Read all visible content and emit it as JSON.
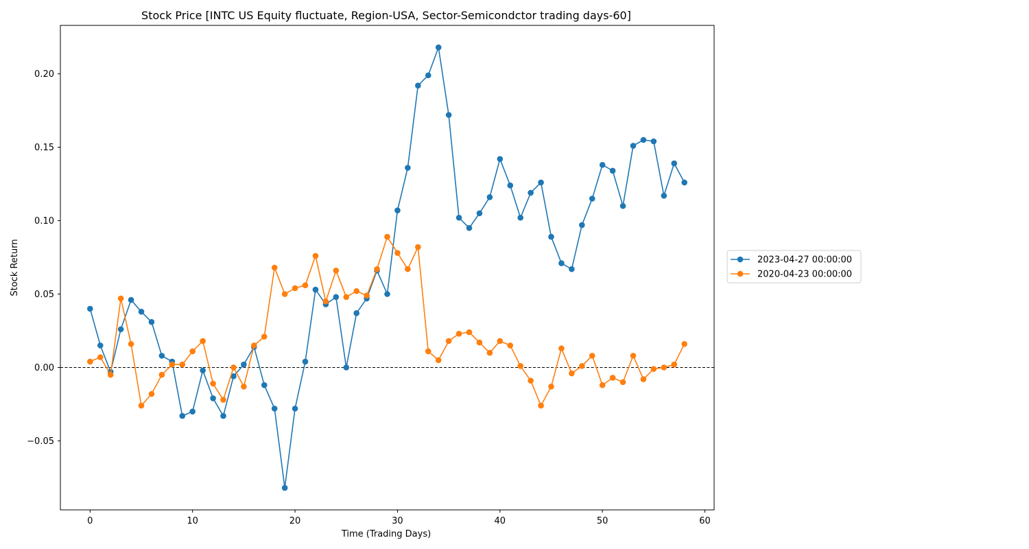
{
  "chart_data": {
    "type": "line",
    "title": "Stock Price [INTC US Equity fluctuate, Region-USA, Sector-Semicondctor trading days-60]",
    "xlabel": "Time (Trading Days)",
    "ylabel": "Stock Return",
    "xlim": [
      -2.9,
      60.9
    ],
    "ylim": [
      -0.097,
      0.233
    ],
    "xticks": [
      0,
      10,
      20,
      30,
      40,
      50,
      60
    ],
    "xtick_labels": [
      "0",
      "10",
      "20",
      "30",
      "40",
      "50",
      "60"
    ],
    "yticks": [
      -0.05,
      0.0,
      0.05,
      0.1,
      0.15,
      0.2
    ],
    "ytick_labels": [
      "−0.05",
      "0.00",
      "0.05",
      "0.10",
      "0.15",
      "0.20"
    ],
    "hline": {
      "y": 0,
      "style": "dashed",
      "color": "#000000"
    },
    "grid": false,
    "legend_position": "outside-right",
    "series": [
      {
        "name": "2023-04-27 00:00:00",
        "color": "#1f77b4",
        "marker": "circle",
        "x": [
          0,
          1,
          2,
          3,
          4,
          5,
          6,
          7,
          8,
          9,
          10,
          11,
          12,
          13,
          14,
          15,
          16,
          17,
          18,
          19,
          20,
          21,
          22,
          23,
          24,
          25,
          26,
          27,
          28,
          29,
          30,
          31,
          32,
          33,
          34,
          35,
          36,
          37,
          38,
          39,
          40,
          41,
          42,
          43,
          44,
          45,
          46,
          47,
          48,
          49,
          50,
          51,
          52,
          53,
          54,
          55,
          56,
          57,
          58
        ],
        "values": [
          0.04,
          0.015,
          -0.003,
          0.026,
          0.046,
          0.038,
          0.031,
          0.008,
          0.004,
          -0.033,
          -0.03,
          -0.002,
          -0.021,
          -0.033,
          -0.006,
          0.002,
          0.014,
          -0.012,
          -0.028,
          -0.082,
          -0.028,
          0.004,
          0.053,
          0.043,
          0.048,
          0.0,
          0.037,
          0.047,
          0.066,
          0.05,
          0.107,
          0.136,
          0.192,
          0.199,
          0.218,
          0.172,
          0.102,
          0.095,
          0.105,
          0.116,
          0.142,
          0.124,
          0.102,
          0.119,
          0.126,
          0.089,
          0.071,
          0.067,
          0.097,
          0.115,
          0.138,
          0.134,
          0.11,
          0.151,
          0.155,
          0.154,
          0.117,
          0.139,
          0.126
        ]
      },
      {
        "name": "2020-04-23 00:00:00",
        "color": "#ff7f0e",
        "marker": "circle",
        "x": [
          0,
          1,
          2,
          3,
          4,
          5,
          6,
          7,
          8,
          9,
          10,
          11,
          12,
          13,
          14,
          15,
          16,
          17,
          18,
          19,
          20,
          21,
          22,
          23,
          24,
          25,
          26,
          27,
          28,
          29,
          30,
          31,
          32,
          33,
          34,
          35,
          36,
          37,
          38,
          39,
          40,
          41,
          42,
          43,
          44,
          45,
          46,
          47,
          48,
          49,
          50,
          51,
          52,
          53,
          54,
          55,
          56,
          57,
          58
        ],
        "values": [
          0.004,
          0.007,
          -0.005,
          0.047,
          0.016,
          -0.026,
          -0.018,
          -0.005,
          0.002,
          0.002,
          0.011,
          0.018,
          -0.011,
          -0.022,
          0.0,
          -0.013,
          0.015,
          0.021,
          0.068,
          0.05,
          0.054,
          0.056,
          0.076,
          0.045,
          0.066,
          0.048,
          0.052,
          0.049,
          0.067,
          0.089,
          0.078,
          0.067,
          0.082,
          0.011,
          0.005,
          0.018,
          0.023,
          0.024,
          0.017,
          0.01,
          0.018,
          0.015,
          0.001,
          -0.009,
          -0.026,
          -0.013,
          0.013,
          -0.004,
          0.001,
          0.008,
          -0.012,
          -0.007,
          -0.01,
          0.008,
          -0.008,
          -0.001,
          0.0,
          0.002,
          0.016
        ]
      }
    ]
  }
}
